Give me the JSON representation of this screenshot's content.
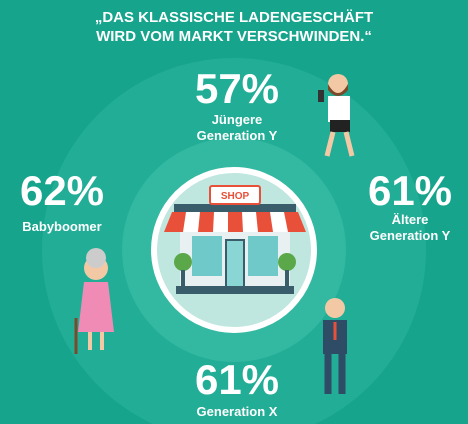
{
  "title": [
    "„DAS KLASSISCHE LADENGESCHÄFT",
    "WIRD VOM MARKT VERSCHWINDEN.“"
  ],
  "segments": [
    {
      "value": "57%",
      "label": [
        "Jüngere",
        "Generation Y"
      ]
    },
    {
      "value": "62%",
      "label": [
        "Babyboomer"
      ]
    },
    {
      "value": "61%",
      "label": [
        "Ältere",
        "Generation Y"
      ]
    },
    {
      "value": "61%",
      "label": [
        "Generation X"
      ]
    }
  ],
  "shop_sign": "SHOP"
}
